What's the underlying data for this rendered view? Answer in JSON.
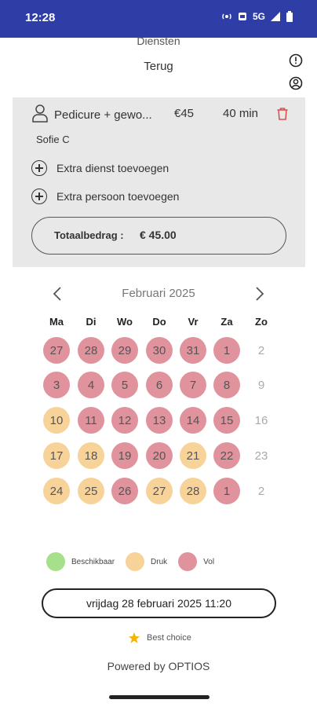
{
  "status_bar": {
    "time": "12:28",
    "network": "5G"
  },
  "header": {
    "cut_title": "Diensten",
    "back_label": "Terug",
    "info_icon": "info-icon",
    "account_icon": "user-icon"
  },
  "booking": {
    "service": {
      "name": "Pedicure + gewo...",
      "price": "€45",
      "duration": "40 min"
    },
    "staff": "Sofie C",
    "add_service": "Extra dienst toevoegen",
    "add_person": "Extra persoon toevoegen",
    "total_label": "Totaalbedrag :",
    "total_value": "€ 45.00"
  },
  "calendar": {
    "month": "Februari 2025",
    "prev_icon": "chevron-left-icon",
    "next_icon": "chevron-right-icon",
    "weekdays": [
      "Ma",
      "Di",
      "Wo",
      "Do",
      "Vr",
      "Za",
      "Zo"
    ],
    "weeks": [
      [
        {
          "d": "27",
          "s": "vol"
        },
        {
          "d": "28",
          "s": "vol"
        },
        {
          "d": "29",
          "s": "vol"
        },
        {
          "d": "30",
          "s": "vol"
        },
        {
          "d": "31",
          "s": "vol"
        },
        {
          "d": "1",
          "s": "vol"
        },
        {
          "d": "2",
          "s": "none"
        }
      ],
      [
        {
          "d": "3",
          "s": "vol"
        },
        {
          "d": "4",
          "s": "vol"
        },
        {
          "d": "5",
          "s": "vol"
        },
        {
          "d": "6",
          "s": "vol"
        },
        {
          "d": "7",
          "s": "vol"
        },
        {
          "d": "8",
          "s": "vol"
        },
        {
          "d": "9",
          "s": "none"
        }
      ],
      [
        {
          "d": "10",
          "s": "druk"
        },
        {
          "d": "11",
          "s": "vol"
        },
        {
          "d": "12",
          "s": "vol"
        },
        {
          "d": "13",
          "s": "vol"
        },
        {
          "d": "14",
          "s": "vol"
        },
        {
          "d": "15",
          "s": "vol"
        },
        {
          "d": "16",
          "s": "none"
        }
      ],
      [
        {
          "d": "17",
          "s": "druk"
        },
        {
          "d": "18",
          "s": "druk"
        },
        {
          "d": "19",
          "s": "vol"
        },
        {
          "d": "20",
          "s": "vol"
        },
        {
          "d": "21",
          "s": "druk"
        },
        {
          "d": "22",
          "s": "vol"
        },
        {
          "d": "23",
          "s": "none"
        }
      ],
      [
        {
          "d": "24",
          "s": "druk"
        },
        {
          "d": "25",
          "s": "druk"
        },
        {
          "d": "26",
          "s": "vol"
        },
        {
          "d": "27",
          "s": "druk"
        },
        {
          "d": "28",
          "s": "druk"
        },
        {
          "d": "1",
          "s": "vol"
        },
        {
          "d": "2",
          "s": "none"
        }
      ]
    ]
  },
  "legend": [
    {
      "label": "Beschikbaar",
      "color": "#a6e08b"
    },
    {
      "label": "Druk",
      "color": "#f8d399"
    },
    {
      "label": "Vol",
      "color": "#e0939c"
    }
  ],
  "selected_slot": "vrijdag 28 februari 2025 11:20",
  "best_choice": "Best choice",
  "powered_by": "Powered by OPTIOS",
  "colors": {
    "status_bar": "#2f3ea6",
    "vol": "#e0939c",
    "druk": "#f8d399",
    "beschikbaar": "#a6e08b",
    "trash": "#d9534f"
  }
}
